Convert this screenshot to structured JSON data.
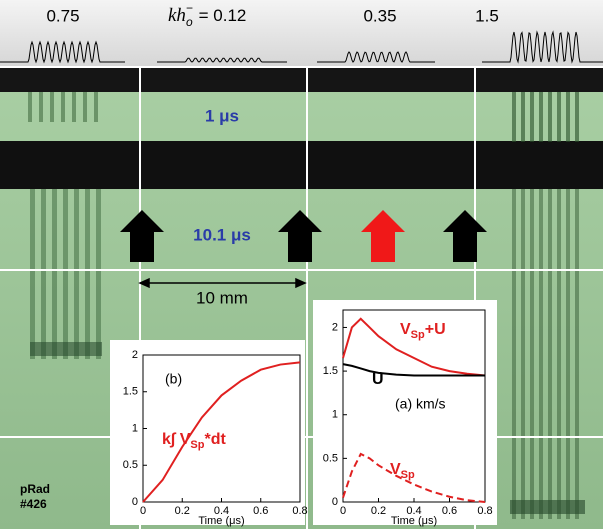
{
  "profile": {
    "labels": [
      "0.75",
      "0.35",
      "1.5"
    ],
    "kh": {
      "text": "kh",
      "sub": "o",
      "sup": "−",
      "rest": "= 0.12"
    }
  },
  "radiograph": {
    "time_top": "1 μs",
    "time_bottom": "10.1 μs",
    "scale": "10 mm",
    "id_line1": "pRad",
    "id_line2": "#426"
  },
  "chart_data": [
    {
      "type": "line",
      "panel": "(b)",
      "x": [
        0,
        0.1,
        0.2,
        0.3,
        0.4,
        0.5,
        0.6,
        0.7,
        0.8
      ],
      "xlabel": "Time (μs)",
      "xlim": [
        0,
        0.8
      ],
      "xticks": [
        0,
        0.2,
        0.4,
        0.6,
        0.8
      ],
      "ylim": [
        0,
        2
      ],
      "yticks": [
        0,
        0.5,
        1,
        1.5,
        2
      ],
      "series": [
        {
          "name": {
            "pre": "k∫ V",
            "sub": "Sp",
            "post": "*dt"
          },
          "color": "#e02020",
          "style": "solid",
          "values": [
            0,
            0.3,
            0.75,
            1.15,
            1.45,
            1.65,
            1.8,
            1.87,
            1.9
          ]
        }
      ]
    },
    {
      "type": "line",
      "panel": "(a) km/s",
      "x": [
        0,
        0.05,
        0.1,
        0.15,
        0.2,
        0.3,
        0.4,
        0.5,
        0.6,
        0.7,
        0.8
      ],
      "xlabel": "Time (μs)",
      "xlim": [
        0,
        0.8
      ],
      "xticks": [
        0,
        0.2,
        0.4,
        0.6,
        0.8
      ],
      "ylim": [
        0,
        2.2
      ],
      "yticks": [
        0,
        0.5,
        1,
        1.5,
        2
      ],
      "series": [
        {
          "name": {
            "pre": "V",
            "sub": "Sp",
            "post": "+U"
          },
          "color": "#e02020",
          "style": "solid",
          "values": [
            1.65,
            2.0,
            2.1,
            2.0,
            1.9,
            1.75,
            1.65,
            1.55,
            1.5,
            1.47,
            1.45
          ]
        },
        {
          "name": {
            "pre": "U",
            "sub": "",
            "post": ""
          },
          "color": "#000000",
          "style": "solid",
          "values": [
            1.58,
            1.56,
            1.53,
            1.5,
            1.48,
            1.46,
            1.45,
            1.45,
            1.45,
            1.45,
            1.45
          ]
        },
        {
          "name": {
            "pre": "V",
            "sub": "Sp",
            "post": ""
          },
          "color": "#e02020",
          "style": "dashed",
          "values": [
            0.05,
            0.35,
            0.55,
            0.5,
            0.42,
            0.3,
            0.2,
            0.12,
            0.06,
            0.02,
            0
          ]
        }
      ]
    }
  ]
}
